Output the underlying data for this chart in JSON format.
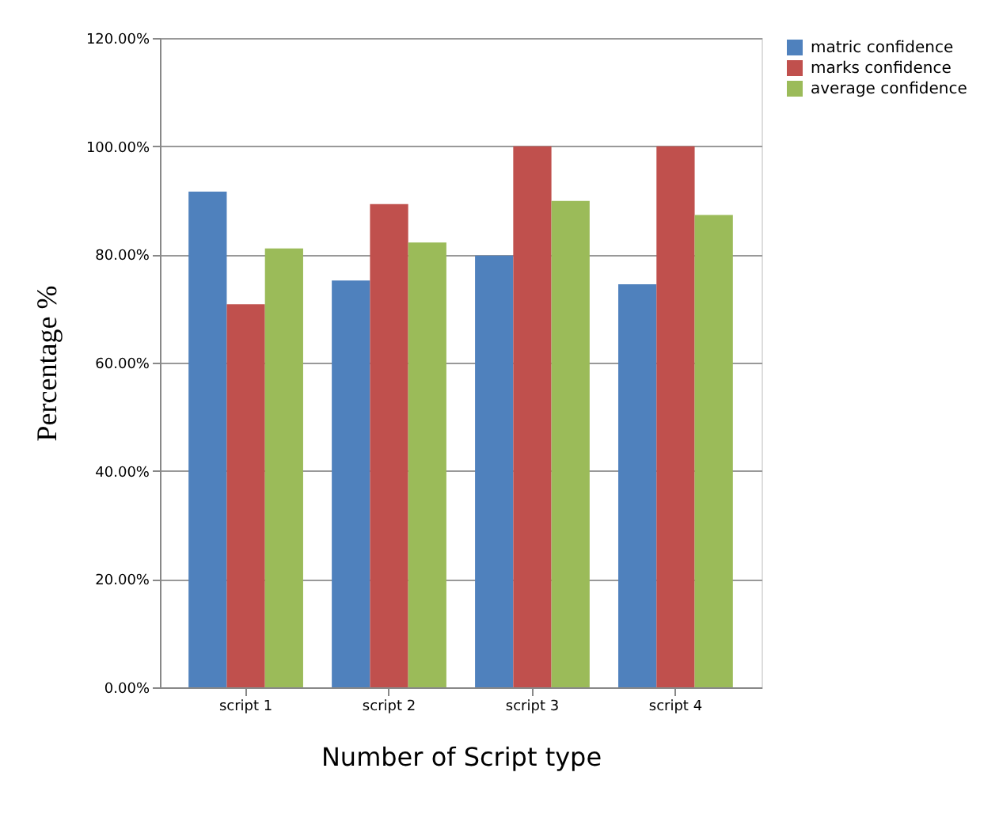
{
  "chart_data": {
    "type": "bar",
    "xlabel": "Number of Script type",
    "ylabel": "Percentage %",
    "categories": [
      "script 1",
      "script 2",
      "script 3",
      "script 4"
    ],
    "series": [
      {
        "name": "matric confidence",
        "color": "#4f81bd",
        "values": [
          91.6,
          75.2,
          79.8,
          74.5
        ]
      },
      {
        "name": "marks confidence",
        "color": "#c0504d",
        "values": [
          70.8,
          89.3,
          100,
          100
        ]
      },
      {
        "name": "average confidence",
        "color": "#9bbb59",
        "values": [
          81.1,
          82.2,
          89.9,
          87.3
        ]
      }
    ],
    "ylim": [
      0,
      120
    ],
    "yticks": [
      {
        "value": 0,
        "label": "0.00%"
      },
      {
        "value": 20,
        "label": "20.00%"
      },
      {
        "value": 40,
        "label": "40.00%"
      },
      {
        "value": 60,
        "label": "60.00%"
      },
      {
        "value": 80,
        "label": "80.00%"
      },
      {
        "value": 100,
        "label": "100.00%"
      },
      {
        "value": 120,
        "label": "120.00%"
      }
    ],
    "grid": "y",
    "legend": "right"
  }
}
